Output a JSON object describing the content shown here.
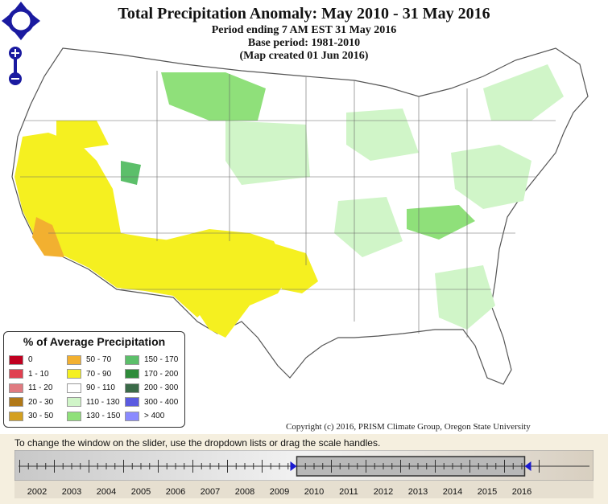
{
  "title": {
    "main": "Total Precipitation Anomaly: May 2010 - 31 May 2016",
    "period": "Period ending 7 AM EST 31 May 2016",
    "base": "Base period: 1981-2010",
    "created": "(Map created 01 Jun 2016)"
  },
  "legend": {
    "title": "% of Average Precipitation",
    "items": [
      {
        "label": "0",
        "color": "#c00020"
      },
      {
        "label": "1 - 10",
        "color": "#e04050"
      },
      {
        "label": "11 - 20",
        "color": "#e07a80"
      },
      {
        "label": "20 - 30",
        "color": "#b07818"
      },
      {
        "label": "30 - 50",
        "color": "#d4a020"
      },
      {
        "label": "50 - 70",
        "color": "#f2b030"
      },
      {
        "label": "70 - 90",
        "color": "#f5f020"
      },
      {
        "label": "90 - 110",
        "color": "#ffffff"
      },
      {
        "label": "110 - 130",
        "color": "#d0f5c8"
      },
      {
        "label": "130 - 150",
        "color": "#8fe07a"
      },
      {
        "label": "150 - 170",
        "color": "#5cbf6a"
      },
      {
        "label": "170 - 200",
        "color": "#2e8b3a"
      },
      {
        "label": "200 - 300",
        "color": "#3a6a48"
      },
      {
        "label": "300 - 400",
        "color": "#5a5ae0"
      },
      {
        "label": "> 400",
        "color": "#8a8aff"
      }
    ]
  },
  "copyright": "Copyright (c) 2016, PRISM Climate Group, Oregon State University",
  "slider": {
    "instructions": "To change the window on the slider, use the dropdown lists or drag the scale handles.",
    "years": [
      "2002",
      "2003",
      "2004",
      "2005",
      "2006",
      "2007",
      "2008",
      "2009",
      "2010",
      "2011",
      "2012",
      "2013",
      "2014",
      "2015",
      "2016"
    ],
    "window_start": "2010",
    "window_end": "2016"
  },
  "controls": {
    "pan_icon": "pan-arrows-icon",
    "zoom_in_icon": "zoom-in-icon",
    "zoom_out_icon": "zoom-out-icon"
  }
}
